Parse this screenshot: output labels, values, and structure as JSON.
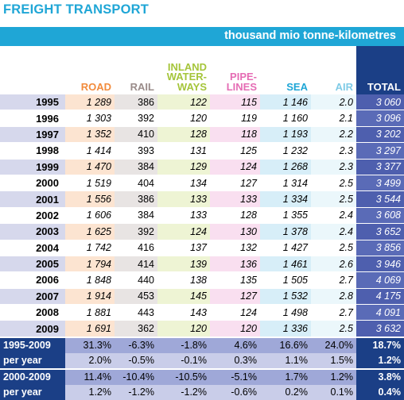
{
  "title": "FREIGHT TRANSPORT",
  "unit": "thousand mio tonne-kilometres",
  "headers": {
    "road": "ROAD",
    "rail": "RAIL",
    "iww1": "INLAND",
    "iww2": "WATER-",
    "iww3": "WAYS",
    "pipe1": "PIPE-",
    "pipe2": "LINES",
    "sea": "SEA",
    "air": "AIR",
    "total": "TOTAL"
  },
  "colors": {
    "title": "#1fa6d6",
    "road": "#f28b3c",
    "rail": "#9a8c8a",
    "inland_waterways": "#a5c53a",
    "pipelines": "#e56cb4",
    "sea": "#1fa6d6",
    "air": "#7fcbe6",
    "total": "#1b3f86"
  },
  "rows": [
    {
      "year": "1995",
      "road": "1 289",
      "rail": "386",
      "iww": "122",
      "pipe": "115",
      "sea": "1 146",
      "air": "2.0",
      "total": "3 060"
    },
    {
      "year": "1996",
      "road": "1 303",
      "rail": "392",
      "iww": "120",
      "pipe": "119",
      "sea": "1 160",
      "air": "2.1",
      "total": "3 096"
    },
    {
      "year": "1997",
      "road": "1 352",
      "rail": "410",
      "iww": "128",
      "pipe": "118",
      "sea": "1 193",
      "air": "2.2",
      "total": "3 202"
    },
    {
      "year": "1998",
      "road": "1 414",
      "rail": "393",
      "iww": "131",
      "pipe": "125",
      "sea": "1 232",
      "air": "2.3",
      "total": "3 297"
    },
    {
      "year": "1999",
      "road": "1 470",
      "rail": "384",
      "iww": "129",
      "pipe": "124",
      "sea": "1 268",
      "air": "2.3",
      "total": "3 377"
    },
    {
      "year": "2000",
      "road": "1 519",
      "rail": "404",
      "iww": "134",
      "pipe": "127",
      "sea": "1 314",
      "air": "2.5",
      "total": "3 499"
    },
    {
      "year": "2001",
      "road": "1 556",
      "rail": "386",
      "iww": "133",
      "pipe": "133",
      "sea": "1 334",
      "air": "2.5",
      "total": "3 544"
    },
    {
      "year": "2002",
      "road": "1 606",
      "rail": "384",
      "iww": "133",
      "pipe": "128",
      "sea": "1 355",
      "air": "2.4",
      "total": "3 608"
    },
    {
      "year": "2003",
      "road": "1 625",
      "rail": "392",
      "iww": "124",
      "pipe": "130",
      "sea": "1 378",
      "air": "2.4",
      "total": "3 652"
    },
    {
      "year": "2004",
      "road": "1 742",
      "rail": "416",
      "iww": "137",
      "pipe": "132",
      "sea": "1 427",
      "air": "2.5",
      "total": "3 856"
    },
    {
      "year": "2005",
      "road": "1 794",
      "rail": "414",
      "iww": "139",
      "pipe": "136",
      "sea": "1 461",
      "air": "2.6",
      "total": "3 946"
    },
    {
      "year": "2006",
      "road": "1 848",
      "rail": "440",
      "iww": "138",
      "pipe": "135",
      "sea": "1 505",
      "air": "2.7",
      "total": "4 069"
    },
    {
      "year": "2007",
      "road": "1 914",
      "rail": "453",
      "iww": "145",
      "pipe": "127",
      "sea": "1 532",
      "air": "2.8",
      "total": "4 175"
    },
    {
      "year": "2008",
      "road": "1 881",
      "rail": "443",
      "iww": "143",
      "pipe": "124",
      "sea": "1 498",
      "air": "2.7",
      "total": "4 091"
    },
    {
      "year": "2009",
      "road": "1 691",
      "rail": "362",
      "iww": "120",
      "pipe": "120",
      "sea": "1 336",
      "air": "2.5",
      "total": "3 632"
    }
  ],
  "summary": [
    {
      "label": "1995-2009",
      "road": "31.3%",
      "rail": "-6.3%",
      "iww": "-1.8%",
      "pipe": "4.6%",
      "sea": "16.6%",
      "air": "24.0%",
      "total": "18.7%"
    },
    {
      "label": "per year",
      "road": "2.0%",
      "rail": "-0.5%",
      "iww": "-0.1%",
      "pipe": "0.3%",
      "sea": "1.1%",
      "air": "1.5%",
      "total": "1.2%"
    },
    {
      "label": "2000-2009",
      "road": "11.4%",
      "rail": "-10.4%",
      "iww": "-10.5%",
      "pipe": "-5.1%",
      "sea": "1.7%",
      "air": "1.2%",
      "total": "3.8%"
    },
    {
      "label": "per year",
      "road": "1.2%",
      "rail": "-1.2%",
      "iww": "-1.2%",
      "pipe": "-0.6%",
      "sea": "0.2%",
      "air": "0.1%",
      "total": "0.4%"
    }
  ]
}
